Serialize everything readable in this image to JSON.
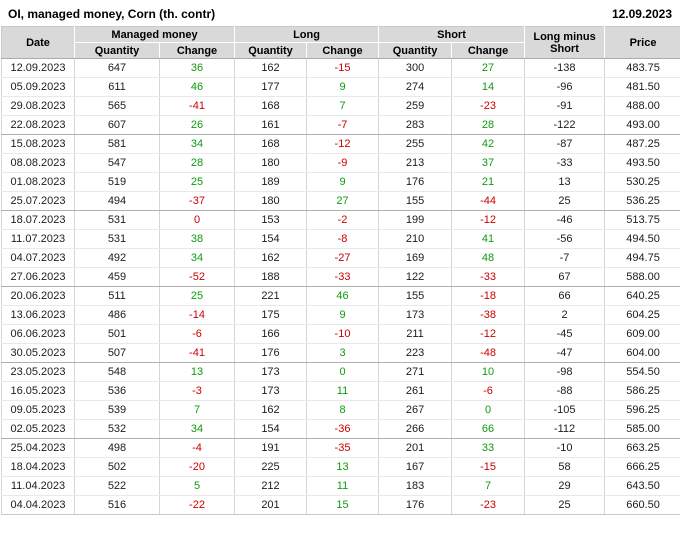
{
  "header": {
    "title": "OI, managed money, Corn (th. contr)",
    "report_date": "12.09.2023"
  },
  "colors": {
    "positive_change": "#0f9b0f",
    "negative_change": "#cc0000",
    "header_bg": "#d9d9d9"
  },
  "table": {
    "columns": {
      "date": "Date",
      "managed_money": "Managed money",
      "long": "Long",
      "short": "Short",
      "quantity": "Quantity",
      "change": "Change",
      "long_minus_short": "Long minus Short",
      "price": "Price"
    },
    "rows": [
      [
        "12.09.2023",
        "647",
        {
          "v": "36",
          "s": "pos"
        },
        "162",
        {
          "v": "-15",
          "s": "neg"
        },
        "300",
        {
          "v": "27",
          "s": "pos"
        },
        "-138",
        "483.75"
      ],
      [
        "05.09.2023",
        "611",
        {
          "v": "46",
          "s": "pos"
        },
        "177",
        {
          "v": "9",
          "s": "pos"
        },
        "274",
        {
          "v": "14",
          "s": "pos"
        },
        "-96",
        "481.50"
      ],
      [
        "29.08.2023",
        "565",
        {
          "v": "-41",
          "s": "neg"
        },
        "168",
        {
          "v": "7",
          "s": "pos"
        },
        "259",
        {
          "v": "-23",
          "s": "neg"
        },
        "-91",
        "488.00"
      ],
      [
        "22.08.2023",
        "607",
        {
          "v": "26",
          "s": "pos"
        },
        "161",
        {
          "v": "-7",
          "s": "neg"
        },
        "283",
        {
          "v": "28",
          "s": "pos"
        },
        "-122",
        "493.00"
      ],
      [
        "15.08.2023",
        "581",
        {
          "v": "34",
          "s": "pos"
        },
        "168",
        {
          "v": "-12",
          "s": "neg"
        },
        "255",
        {
          "v": "42",
          "s": "pos"
        },
        "-87",
        "487.25"
      ],
      [
        "08.08.2023",
        "547",
        {
          "v": "28",
          "s": "pos"
        },
        "180",
        {
          "v": "-9",
          "s": "neg"
        },
        "213",
        {
          "v": "37",
          "s": "pos"
        },
        "-33",
        "493.50"
      ],
      [
        "01.08.2023",
        "519",
        {
          "v": "25",
          "s": "pos"
        },
        "189",
        {
          "v": "9",
          "s": "pos"
        },
        "176",
        {
          "v": "21",
          "s": "pos"
        },
        "13",
        "530.25"
      ],
      [
        "25.07.2023",
        "494",
        {
          "v": "-37",
          "s": "neg"
        },
        "180",
        {
          "v": "27",
          "s": "pos"
        },
        "155",
        {
          "v": "-44",
          "s": "neg"
        },
        "25",
        "536.25"
      ],
      [
        "18.07.2023",
        "531",
        {
          "v": "0",
          "s": "neg"
        },
        "153",
        {
          "v": "-2",
          "s": "neg"
        },
        "199",
        {
          "v": "-12",
          "s": "neg"
        },
        "-46",
        "513.75"
      ],
      [
        "11.07.2023",
        "531",
        {
          "v": "38",
          "s": "pos"
        },
        "154",
        {
          "v": "-8",
          "s": "neg"
        },
        "210",
        {
          "v": "41",
          "s": "pos"
        },
        "-56",
        "494.50"
      ],
      [
        "04.07.2023",
        "492",
        {
          "v": "34",
          "s": "pos"
        },
        "162",
        {
          "v": "-27",
          "s": "neg"
        },
        "169",
        {
          "v": "48",
          "s": "pos"
        },
        "-7",
        "494.75"
      ],
      [
        "27.06.2023",
        "459",
        {
          "v": "-52",
          "s": "neg"
        },
        "188",
        {
          "v": "-33",
          "s": "neg"
        },
        "122",
        {
          "v": "-33",
          "s": "neg"
        },
        "67",
        "588.00"
      ],
      [
        "20.06.2023",
        "511",
        {
          "v": "25",
          "s": "pos"
        },
        "221",
        {
          "v": "46",
          "s": "pos"
        },
        "155",
        {
          "v": "-18",
          "s": "neg"
        },
        "66",
        "640.25"
      ],
      [
        "13.06.2023",
        "486",
        {
          "v": "-14",
          "s": "neg"
        },
        "175",
        {
          "v": "9",
          "s": "pos"
        },
        "173",
        {
          "v": "-38",
          "s": "neg"
        },
        "2",
        "604.25"
      ],
      [
        "06.06.2023",
        "501",
        {
          "v": "-6",
          "s": "neg"
        },
        "166",
        {
          "v": "-10",
          "s": "neg"
        },
        "211",
        {
          "v": "-12",
          "s": "neg"
        },
        "-45",
        "609.00"
      ],
      [
        "30.05.2023",
        "507",
        {
          "v": "-41",
          "s": "neg"
        },
        "176",
        {
          "v": "3",
          "s": "pos"
        },
        "223",
        {
          "v": "-48",
          "s": "neg"
        },
        "-47",
        "604.00"
      ],
      [
        "23.05.2023",
        "548",
        {
          "v": "13",
          "s": "pos"
        },
        "173",
        {
          "v": "0",
          "s": "pos"
        },
        "271",
        {
          "v": "10",
          "s": "pos"
        },
        "-98",
        "554.50"
      ],
      [
        "16.05.2023",
        "536",
        {
          "v": "-3",
          "s": "neg"
        },
        "173",
        {
          "v": "11",
          "s": "pos"
        },
        "261",
        {
          "v": "-6",
          "s": "neg"
        },
        "-88",
        "586.25"
      ],
      [
        "09.05.2023",
        "539",
        {
          "v": "7",
          "s": "pos"
        },
        "162",
        {
          "v": "8",
          "s": "pos"
        },
        "267",
        {
          "v": "0",
          "s": "pos"
        },
        "-105",
        "596.25"
      ],
      [
        "02.05.2023",
        "532",
        {
          "v": "34",
          "s": "pos"
        },
        "154",
        {
          "v": "-36",
          "s": "neg"
        },
        "266",
        {
          "v": "66",
          "s": "pos"
        },
        "-112",
        "585.00"
      ],
      [
        "25.04.2023",
        "498",
        {
          "v": "-4",
          "s": "neg"
        },
        "191",
        {
          "v": "-35",
          "s": "neg"
        },
        "201",
        {
          "v": "33",
          "s": "pos"
        },
        "-10",
        "663.25"
      ],
      [
        "18.04.2023",
        "502",
        {
          "v": "-20",
          "s": "neg"
        },
        "225",
        {
          "v": "13",
          "s": "pos"
        },
        "167",
        {
          "v": "-15",
          "s": "neg"
        },
        "58",
        "666.25"
      ],
      [
        "11.04.2023",
        "522",
        {
          "v": "5",
          "s": "pos"
        },
        "212",
        {
          "v": "11",
          "s": "pos"
        },
        "183",
        {
          "v": "7",
          "s": "pos"
        },
        "29",
        "643.50"
      ],
      [
        "04.04.2023",
        "516",
        {
          "v": "-22",
          "s": "neg"
        },
        "201",
        {
          "v": "15",
          "s": "pos"
        },
        "176",
        {
          "v": "-23",
          "s": "neg"
        },
        "25",
        "660.50"
      ]
    ]
  }
}
